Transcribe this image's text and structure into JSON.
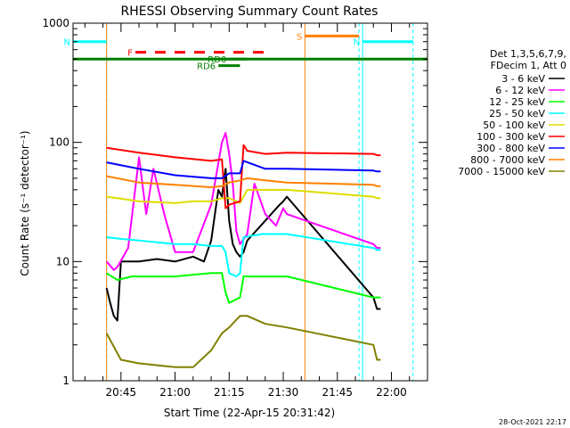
{
  "chart_data": {
    "type": "line",
    "title": "RHESSI Observing Summary Count Rates",
    "xlabel": "Start Time (22-Apr-15 20:31:42)",
    "ylabel": "Count Rate (s⁻¹ detector⁻¹)",
    "yscale": "log",
    "ylim": [
      1,
      1000
    ],
    "xlim": [
      "20:31:42",
      "22:10:00"
    ],
    "x_ticks": [
      "20:45",
      "21:00",
      "21:15",
      "21:30",
      "21:45",
      "22:00"
    ],
    "y_ticks": [
      "1",
      "10",
      "100",
      "1000"
    ],
    "legend_header": [
      "Det 1,3,5,6,7,9,",
      "FDecim 1, Att 0"
    ],
    "legend_placement": "right",
    "timestamp": "28-Oct-2021 22:17",
    "series": [
      {
        "name": "3 - 6 keV",
        "color": "#000000",
        "x": [
          "20:41",
          "20:42",
          "20:43",
          "20:44",
          "20:45",
          "20:50",
          "20:55",
          "21:00",
          "21:05",
          "21:08",
          "21:10",
          "21:12",
          "21:13",
          "21:14",
          "21:15",
          "21:16",
          "21:17",
          "21:18",
          "21:19",
          "21:20",
          "21:25",
          "21:29",
          "21:30",
          "21:31",
          "21:55",
          "21:56",
          "21:57"
        ],
        "y": [
          6,
          4.5,
          3.5,
          3.2,
          10,
          10,
          10.5,
          10,
          11,
          10,
          15,
          40,
          35,
          60,
          22,
          14,
          12,
          11,
          12,
          15,
          22,
          30,
          32,
          35,
          5,
          4,
          4
        ]
      },
      {
        "name": "6 - 12 keV",
        "color": "#ff00ff",
        "x": [
          "20:41",
          "20:43",
          "20:44",
          "20:47",
          "20:50",
          "20:52",
          "20:54",
          "20:57",
          "21:00",
          "21:05",
          "21:10",
          "21:13",
          "21:14",
          "21:15",
          "21:16",
          "21:17",
          "21:18",
          "21:20",
          "21:22",
          "21:25",
          "21:28",
          "21:30",
          "21:31",
          "21:55",
          "21:56",
          "21:57"
        ],
        "y": [
          10,
          8.5,
          9,
          13,
          75,
          25,
          60,
          25,
          12,
          12,
          30,
          100,
          120,
          80,
          45,
          18,
          14,
          17,
          45,
          25,
          20,
          28,
          25,
          14,
          13,
          13
        ]
      },
      {
        "name": "12 - 25 keV",
        "color": "#00ff00",
        "x": [
          "20:41",
          "20:44",
          "20:48",
          "21:00",
          "21:10",
          "21:13",
          "21:14",
          "21:15",
          "21:18",
          "21:19",
          "21:25",
          "21:31",
          "21:55",
          "21:56",
          "21:57"
        ],
        "y": [
          8,
          7,
          7.5,
          7.5,
          8,
          8,
          5.5,
          4.5,
          5,
          7.5,
          7.5,
          7.5,
          5,
          5,
          5
        ]
      },
      {
        "name": "25 - 50 keV",
        "color": "#00ffff",
        "x": [
          "20:41",
          "20:45",
          "20:50",
          "21:00",
          "21:05",
          "21:10",
          "21:13",
          "21:14",
          "21:15",
          "21:17",
          "21:18",
          "21:19",
          "21:24",
          "21:31",
          "21:55",
          "21:56",
          "21:57"
        ],
        "y": [
          16,
          15.5,
          15,
          14,
          14,
          13.5,
          13.5,
          12,
          8,
          7.5,
          8,
          16,
          17,
          17,
          13,
          12.5,
          12.5
        ]
      },
      {
        "name": "50 - 100 keV",
        "color": "#dddd00",
        "x": [
          "20:41",
          "20:50",
          "21:00",
          "21:05",
          "21:10",
          "21:13",
          "21:15",
          "21:17",
          "21:18",
          "21:20",
          "21:25",
          "21:31",
          "21:55",
          "21:56",
          "21:57"
        ],
        "y": [
          35,
          32,
          31,
          32,
          32,
          34,
          34,
          32,
          31,
          40,
          40,
          40,
          35,
          34,
          34
        ]
      },
      {
        "name": "100 - 300 keV",
        "color": "#ff0000",
        "x": [
          "20:41",
          "20:50",
          "21:00",
          "21:10",
          "21:13",
          "21:14",
          "21:15",
          "21:18",
          "21:19",
          "21:20",
          "21:25",
          "21:31",
          "21:55",
          "21:56",
          "21:57"
        ],
        "y": [
          90,
          82,
          75,
          70,
          72,
          28,
          30,
          32,
          95,
          85,
          80,
          82,
          80,
          78,
          78
        ]
      },
      {
        "name": "300 - 800 keV",
        "color": "#0000ff",
        "x": [
          "20:41",
          "20:50",
          "21:00",
          "21:10",
          "21:13",
          "21:15",
          "21:18",
          "21:19",
          "21:25",
          "21:31",
          "21:55",
          "21:56",
          "21:57"
        ],
        "y": [
          68,
          60,
          53,
          50,
          50,
          55,
          55,
          70,
          60,
          60,
          58,
          57,
          57
        ]
      },
      {
        "name": "800 - 7000 keV",
        "color": "#ff8000",
        "x": [
          "20:41",
          "20:50",
          "21:00",
          "21:10",
          "21:13",
          "21:15",
          "21:18",
          "21:20",
          "21:25",
          "21:31",
          "21:55",
          "21:56",
          "21:57"
        ],
        "y": [
          52,
          46,
          44,
          42,
          43,
          46,
          48,
          50,
          48,
          46,
          44,
          43,
          43
        ]
      },
      {
        "name": "7000 - 15000 keV",
        "color": "#808000",
        "x": [
          "20:41",
          "20:45",
          "20:50",
          "21:00",
          "21:05",
          "21:10",
          "21:13",
          "21:15",
          "21:18",
          "21:20",
          "21:25",
          "21:31",
          "21:55",
          "21:56",
          "21:57"
        ],
        "y": [
          2.5,
          1.5,
          1.4,
          1.3,
          1.3,
          1.8,
          2.5,
          2.8,
          3.5,
          3.5,
          3,
          2.8,
          2,
          1.5,
          1.5
        ]
      }
    ],
    "flags": [
      {
        "label": "N",
        "color": "#00ffff",
        "x": [
          "20:31:42",
          "20:41"
        ],
        "y": 700
      },
      {
        "label": "N",
        "color": "#00ffff",
        "x": [
          "21:52",
          "22:06"
        ],
        "y": 700
      },
      {
        "label": "S",
        "color": "#ff8000",
        "x": [
          "21:36",
          "21:51"
        ],
        "y": 780
      },
      {
        "label": "F",
        "color": "#ff0000",
        "x": [
          "20:49",
          "21:25"
        ],
        "y": 570
      },
      {
        "label": "RD0",
        "color": "#008000",
        "x": [
          "21:15",
          "21:20"
        ],
        "y": 500
      },
      {
        "label": "RD6",
        "color": "#008000",
        "x": [
          "21:12",
          "21:18"
        ],
        "y": 440
      }
    ],
    "full_span_line": {
      "color": "#008000",
      "y": 500
    },
    "vertical_markers": [
      {
        "color": "#00ffff",
        "x": "20:41",
        "style": "dashed"
      },
      {
        "color": "#ff8000",
        "x": "20:41",
        "style": "solid"
      },
      {
        "color": "#ff8000",
        "x": "21:36",
        "style": "solid"
      },
      {
        "color": "#00ffff",
        "x": "21:51",
        "style": "dashed"
      },
      {
        "color": "#00ffff",
        "x": "21:52",
        "style": "solid"
      },
      {
        "color": "#00ffff",
        "x": "22:06",
        "style": "dashed"
      }
    ]
  }
}
